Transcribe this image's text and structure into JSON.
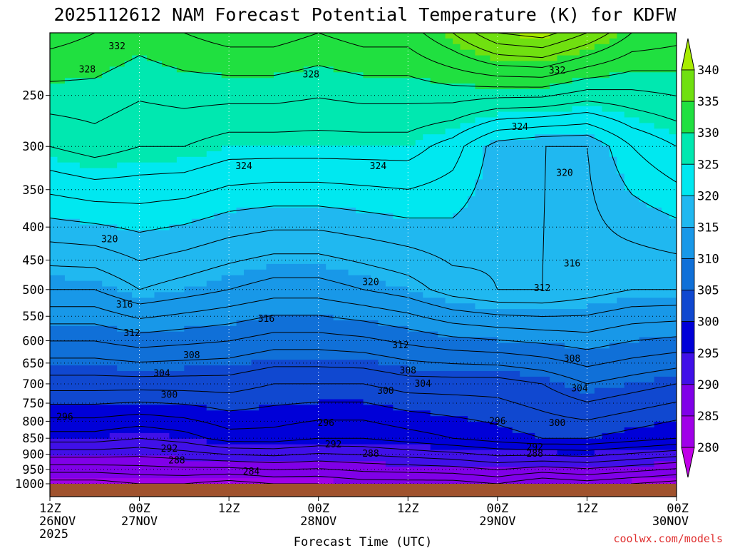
{
  "chart_data": {
    "type": "heatmap",
    "title": "2025112612 NAM Forecast Potential Temperature (K) for KDFW",
    "xlabel": "Forecast Time (UTC)",
    "ylabel": "",
    "x_ticks": [
      {
        "hours": 0,
        "line1": "12Z",
        "line2": "26NOV",
        "line3": "2025"
      },
      {
        "hours": 12,
        "line1": "00Z",
        "line2": "27NOV",
        "line3": ""
      },
      {
        "hours": 24,
        "line1": "12Z",
        "line2": "",
        "line3": ""
      },
      {
        "hours": 36,
        "line1": "00Z",
        "line2": "28NOV",
        "line3": ""
      },
      {
        "hours": 48,
        "line1": "12Z",
        "line2": "",
        "line3": ""
      },
      {
        "hours": 60,
        "line1": "00Z",
        "line2": "29NOV",
        "line3": ""
      },
      {
        "hours": 72,
        "line1": "12Z",
        "line2": "",
        "line3": ""
      },
      {
        "hours": 84,
        "line1": "00Z",
        "line2": "30NOV",
        "line3": ""
      }
    ],
    "xlim": [
      0,
      84
    ],
    "y_ticks": [
      250,
      300,
      350,
      400,
      450,
      500,
      550,
      600,
      650,
      700,
      750,
      800,
      850,
      900,
      950,
      1000
    ],
    "ylim": [
      200,
      1000
    ],
    "y_scale": "log",
    "grid": true,
    "colorbar": {
      "levels": [
        280,
        285,
        290,
        295,
        300,
        305,
        310,
        315,
        320,
        325,
        330,
        335,
        340
      ],
      "colors": [
        "#c000e8",
        "#a000e8",
        "#8000e8",
        "#4010e8",
        "#0000d8",
        "#1048d0",
        "#1070d8",
        "#1898e8",
        "#20b8f0",
        "#00e8f0",
        "#00e8b0",
        "#20e040",
        "#70e010",
        "#a8ec00"
      ]
    },
    "profile": {
      "hours": [
        0,
        6,
        12,
        18,
        24,
        30,
        36,
        42,
        48,
        54,
        60,
        66,
        72,
        78,
        84
      ],
      "theta_1000": [
        283,
        283,
        284,
        284,
        283,
        284,
        284,
        285,
        285,
        285,
        286,
        284,
        285,
        284,
        283
      ],
      "theta_850": [
        295,
        295,
        294,
        295,
        297,
        297,
        296,
        296,
        297,
        298,
        299,
        300,
        300,
        299,
        298
      ],
      "theta_700": [
        303,
        303,
        303,
        303,
        303,
        302,
        302,
        302,
        303,
        303,
        303,
        304,
        306,
        305,
        304
      ],
      "theta_500": [
        314,
        314,
        316,
        315,
        314,
        313,
        313,
        314,
        315,
        317,
        318,
        318,
        317,
        316,
        316
      ],
      "theta_300": [
        326,
        327,
        326,
        326,
        325,
        325,
        325,
        325,
        325,
        323,
        319,
        318,
        318,
        322,
        324
      ],
      "theta_200": [
        333,
        332,
        331,
        332,
        333,
        333,
        332,
        333,
        333,
        336,
        340,
        341,
        338,
        334,
        333
      ]
    },
    "contour_labels": [
      {
        "text": "332",
        "hours": 9,
        "p": 210
      },
      {
        "text": "328",
        "hours": 5,
        "p": 228
      },
      {
        "text": "328",
        "hours": 35,
        "p": 232
      },
      {
        "text": "332",
        "hours": 68,
        "p": 229
      },
      {
        "text": "324",
        "hours": 63,
        "p": 280
      },
      {
        "text": "324",
        "hours": 26,
        "p": 322
      },
      {
        "text": "324",
        "hours": 44,
        "p": 322
      },
      {
        "text": "320",
        "hours": 69,
        "p": 330
      },
      {
        "text": "320",
        "hours": 8,
        "p": 418
      },
      {
        "text": "316",
        "hours": 70,
        "p": 456
      },
      {
        "text": "320",
        "hours": 43,
        "p": 487
      },
      {
        "text": "312",
        "hours": 66,
        "p": 498
      },
      {
        "text": "316",
        "hours": 10,
        "p": 528
      },
      {
        "text": "316",
        "hours": 29,
        "p": 555
      },
      {
        "text": "312",
        "hours": 11,
        "p": 584
      },
      {
        "text": "312",
        "hours": 47,
        "p": 610
      },
      {
        "text": "308",
        "hours": 19,
        "p": 632
      },
      {
        "text": "308",
        "hours": 70,
        "p": 640
      },
      {
        "text": "308",
        "hours": 48,
        "p": 668
      },
      {
        "text": "304",
        "hours": 15,
        "p": 675
      },
      {
        "text": "304",
        "hours": 50,
        "p": 700
      },
      {
        "text": "304",
        "hours": 71,
        "p": 712
      },
      {
        "text": "300",
        "hours": 16,
        "p": 728
      },
      {
        "text": "300",
        "hours": 45,
        "p": 718
      },
      {
        "text": "296",
        "hours": 2,
        "p": 788
      },
      {
        "text": "296",
        "hours": 37,
        "p": 805
      },
      {
        "text": "296",
        "hours": 60,
        "p": 800
      },
      {
        "text": "300",
        "hours": 68,
        "p": 805
      },
      {
        "text": "292",
        "hours": 38,
        "p": 869
      },
      {
        "text": "292",
        "hours": 16,
        "p": 883
      },
      {
        "text": "292",
        "hours": 65,
        "p": 878
      },
      {
        "text": "288",
        "hours": 43,
        "p": 898
      },
      {
        "text": "288",
        "hours": 65,
        "p": 898
      },
      {
        "text": "288",
        "hours": 17,
        "p": 921
      },
      {
        "text": "284",
        "hours": 27,
        "p": 958
      }
    ]
  },
  "credit": {
    "text": "coolwx.com/models",
    "color": "#e03030"
  },
  "terrain_color": "#a0522d"
}
